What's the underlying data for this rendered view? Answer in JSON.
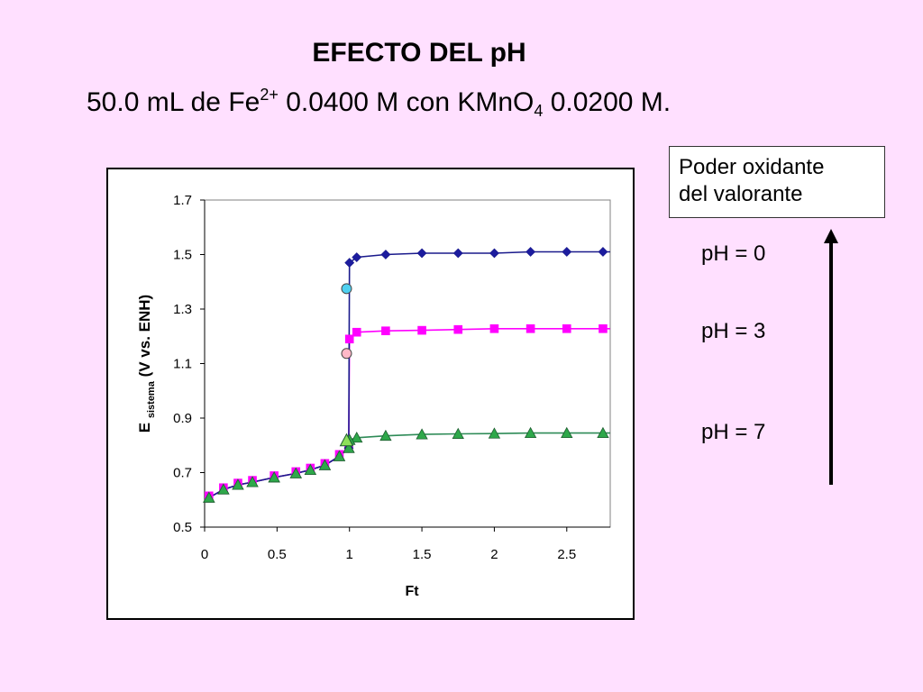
{
  "title": "EFECTO DEL pH",
  "subtitle": {
    "part1": "50.0 mL de Fe",
    "sup": "2+",
    "part2": " 0.0400 M con KMnO",
    "sub": "4",
    "part3": " 0.0200 M."
  },
  "legend_box": {
    "line1": "Poder oxidante",
    "line2": "del valorante"
  },
  "ph_labels": [
    "pH = 0",
    "pH = 3",
    "pH = 7"
  ],
  "chart_data": {
    "type": "line",
    "xlabel": "Ft",
    "ylabel_main": "E",
    "ylabel_sub": "sistema",
    "ylabel_rest": "(V vs. ENH)",
    "xlim": [
      0,
      2.8
    ],
    "ylim": [
      0.5,
      1.7
    ],
    "x_ticks": [
      "0",
      "0.5",
      "1",
      "1.5",
      "2",
      "2.5"
    ],
    "y_ticks": [
      "0.5",
      "0.7",
      "0.9",
      "1.1",
      "1.3",
      "1.5",
      "1.7"
    ],
    "grid": false,
    "common_x": [
      0.03,
      0.13,
      0.23,
      0.33,
      0.48,
      0.63,
      0.73,
      0.83,
      0.93
    ],
    "common_y": [
      0.608,
      0.638,
      0.655,
      0.665,
      0.682,
      0.697,
      0.71,
      0.727,
      0.76
    ],
    "series": [
      {
        "color": "#1a1a8c",
        "marker_color": "#1c1c9e",
        "marker": "diamond",
        "x": [
          0.03,
          0.13,
          0.23,
          0.33,
          0.48,
          0.63,
          0.73,
          0.83,
          0.93,
          0.995,
          1.0,
          1.05,
          1.25,
          1.5,
          1.75,
          2.0,
          2.25,
          2.5,
          2.75
        ],
        "y": [
          0.608,
          0.638,
          0.655,
          0.665,
          0.682,
          0.697,
          0.71,
          0.727,
          0.76,
          0.79,
          1.47,
          1.49,
          1.5,
          1.505,
          1.505,
          1.505,
          1.51,
          1.51,
          1.51
        ],
        "equivalence_point": [
          0.98,
          1.375
        ],
        "equivalence_color": "#4fd0f0"
      },
      {
        "color": "#ff00ff",
        "marker_color": "#ff00ff",
        "marker": "square",
        "x": [
          0.03,
          0.13,
          0.23,
          0.33,
          0.48,
          0.63,
          0.73,
          0.83,
          0.93,
          0.995,
          1.0,
          1.05,
          1.25,
          1.5,
          1.75,
          2.0,
          2.25,
          2.5,
          2.75
        ],
        "y": [
          0.608,
          0.638,
          0.655,
          0.665,
          0.682,
          0.697,
          0.71,
          0.727,
          0.76,
          0.79,
          1.19,
          1.215,
          1.22,
          1.222,
          1.225,
          1.228,
          1.228,
          1.228,
          1.228
        ],
        "equivalence_point": [
          0.98,
          1.137
        ],
        "equivalence_color": "#ffb8c8"
      },
      {
        "color": "#2e8b57",
        "marker_color": "#2ea84a",
        "marker": "triangle",
        "x": [
          0.03,
          0.13,
          0.23,
          0.33,
          0.48,
          0.63,
          0.73,
          0.83,
          0.93,
          0.995,
          1.0,
          1.05,
          1.25,
          1.5,
          1.75,
          2.0,
          2.25,
          2.5,
          2.75
        ],
        "y": [
          0.608,
          0.638,
          0.655,
          0.665,
          0.682,
          0.697,
          0.71,
          0.727,
          0.76,
          0.79,
          0.82,
          0.828,
          0.835,
          0.84,
          0.842,
          0.843,
          0.845,
          0.845,
          0.845
        ],
        "equivalence_point": [
          0.98,
          0.815
        ],
        "equivalence_color": "#8ee05a"
      }
    ]
  },
  "colors": {
    "background": "#ffe0ff",
    "arrow": "#000000"
  }
}
